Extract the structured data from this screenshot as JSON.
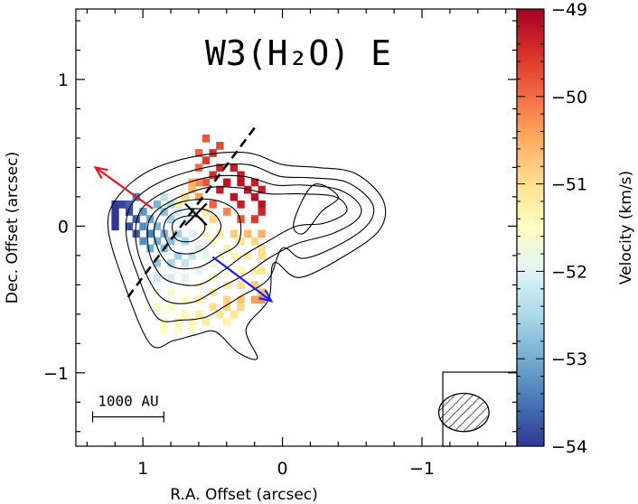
{
  "chart_data": {
    "type": "heatmap",
    "title": "W3(H₂O) E",
    "xlabel": "R.A. Offset (arcsec)",
    "ylabel": "Dec. Offset (arcsec)",
    "colorbar_label": "Velocity (km/s)",
    "xlim": [
      1.48,
      -1.68
    ],
    "ylim": [
      -1.5,
      1.48
    ],
    "x_ticks": [
      1,
      0,
      -1
    ],
    "x_tick_labels": [
      "1",
      "0",
      "−1"
    ],
    "y_ticks": [
      1,
      0,
      -1
    ],
    "y_tick_labels": [
      "1",
      "0",
      "−1"
    ],
    "colorbar_range": [
      -54,
      -49
    ],
    "colorbar_ticks": [
      -49,
      -50,
      -51,
      -52,
      -53,
      -54
    ],
    "colorbar_tick_labels": [
      "−49",
      "−50",
      "−51",
      "−52",
      "−53",
      "−54"
    ],
    "pixel_size_arcsec": 0.05,
    "velocity_pixels": [
      [
        0.55,
        0.6,
        -49.8
      ],
      [
        0.45,
        0.55,
        -49.7
      ],
      [
        0.6,
        0.5,
        -49.9
      ],
      [
        0.5,
        0.5,
        -49.5
      ],
      [
        0.55,
        0.45,
        -49.6
      ],
      [
        0.6,
        0.4,
        -50.0
      ],
      [
        0.45,
        0.4,
        -49.4
      ],
      [
        0.35,
        0.4,
        -49.3
      ],
      [
        0.3,
        0.35,
        -49.3
      ],
      [
        0.5,
        0.35,
        -49.5
      ],
      [
        0.4,
        0.3,
        -49.2
      ],
      [
        0.3,
        0.3,
        -49.2
      ],
      [
        0.2,
        0.3,
        -49.3
      ],
      [
        0.55,
        0.3,
        -49.8
      ],
      [
        0.6,
        0.3,
        -50.2
      ],
      [
        0.65,
        0.3,
        -50.5
      ],
      [
        0.25,
        0.25,
        -49.2
      ],
      [
        0.15,
        0.25,
        -49.3
      ],
      [
        0.45,
        0.25,
        -49.3
      ],
      [
        0.65,
        0.25,
        -50.6
      ],
      [
        0.2,
        0.2,
        -49.2
      ],
      [
        0.35,
        0.2,
        -49.2
      ],
      [
        0.6,
        0.2,
        -50.4
      ],
      [
        0.15,
        0.15,
        -49.2
      ],
      [
        0.3,
        0.15,
        -49.3
      ],
      [
        0.5,
        0.15,
        -49.9
      ],
      [
        0.7,
        0.2,
        -50.9
      ],
      [
        0.75,
        0.15,
        -51.2
      ],
      [
        1.2,
        0.15,
        -54.0
      ],
      [
        1.15,
        0.15,
        -53.9
      ],
      [
        1.05,
        0.2,
        -53.4
      ],
      [
        1.1,
        0.15,
        -53.7
      ],
      [
        1.2,
        0.1,
        -54.0
      ],
      [
        1.1,
        0.1,
        -53.8
      ],
      [
        1.0,
        0.1,
        -53.2
      ],
      [
        0.9,
        0.15,
        -52.9
      ],
      [
        0.85,
        0.2,
        -52.3
      ],
      [
        1.2,
        0.05,
        -54.0
      ],
      [
        1.05,
        0.05,
        -53.7
      ],
      [
        0.95,
        0.05,
        -53.1
      ],
      [
        0.85,
        0.1,
        -52.8
      ],
      [
        0.8,
        0.15,
        -52.4
      ],
      [
        1.2,
        0.0,
        -54.0
      ],
      [
        1.1,
        0.0,
        -53.8
      ],
      [
        1.0,
        0.0,
        -53.3
      ],
      [
        0.9,
        0.0,
        -52.9
      ],
      [
        0.8,
        0.05,
        -52.6
      ],
      [
        0.75,
        0.1,
        -52.1
      ],
      [
        0.7,
        0.05,
        -52.0
      ],
      [
        0.65,
        0.1,
        -51.7
      ],
      [
        0.55,
        0.1,
        -51.2
      ],
      [
        0.5,
        0.05,
        -50.9
      ],
      [
        0.4,
        0.1,
        -50.2
      ],
      [
        0.3,
        0.05,
        -49.8
      ],
      [
        0.2,
        0.05,
        -49.6
      ],
      [
        0.15,
        0.1,
        -49.4
      ],
      [
        1.05,
        -0.05,
        -53.7
      ],
      [
        0.95,
        -0.05,
        -53.4
      ],
      [
        0.85,
        -0.05,
        -53.0
      ],
      [
        0.75,
        -0.05,
        -52.6
      ],
      [
        0.65,
        -0.05,
        -52.0
      ],
      [
        0.55,
        -0.05,
        -51.6
      ],
      [
        0.45,
        -0.05,
        -51.2
      ],
      [
        0.35,
        -0.05,
        -50.8
      ],
      [
        0.25,
        -0.05,
        -50.6
      ],
      [
        0.15,
        -0.05,
        -50.5
      ],
      [
        1.0,
        -0.1,
        -53.3
      ],
      [
        0.9,
        -0.1,
        -53.0
      ],
      [
        0.8,
        -0.1,
        -52.8
      ],
      [
        0.7,
        -0.1,
        -52.5
      ],
      [
        0.6,
        -0.15,
        -52.1
      ],
      [
        0.5,
        -0.1,
        -51.6
      ],
      [
        0.4,
        -0.15,
        -51.3
      ],
      [
        0.3,
        -0.1,
        -51.1
      ],
      [
        0.2,
        -0.1,
        -50.9
      ],
      [
        0.15,
        -0.15,
        -51.0
      ],
      [
        0.95,
        -0.15,
        -53.0
      ],
      [
        0.85,
        -0.15,
        -52.8
      ],
      [
        0.75,
        -0.2,
        -52.6
      ],
      [
        0.65,
        -0.2,
        -52.3
      ],
      [
        0.55,
        -0.2,
        -51.9
      ],
      [
        0.45,
        -0.2,
        -51.6
      ],
      [
        0.35,
        -0.2,
        -51.4
      ],
      [
        0.25,
        -0.2,
        -51.2
      ],
      [
        0.15,
        -0.2,
        -51.0
      ],
      [
        0.9,
        -0.25,
        -52.7
      ],
      [
        0.8,
        -0.25,
        -52.5
      ],
      [
        0.7,
        -0.25,
        -52.3
      ],
      [
        0.6,
        -0.3,
        -52.0
      ],
      [
        0.5,
        -0.25,
        -51.8
      ],
      [
        0.4,
        -0.3,
        -51.6
      ],
      [
        0.3,
        -0.3,
        -51.4
      ],
      [
        0.2,
        -0.3,
        -51.2
      ],
      [
        0.15,
        -0.3,
        -51.1
      ],
      [
        0.9,
        -0.35,
        -52.2
      ],
      [
        0.8,
        -0.35,
        -52.1
      ],
      [
        0.7,
        -0.35,
        -51.9
      ],
      [
        0.6,
        -0.4,
        -51.6
      ],
      [
        0.5,
        -0.35,
        -51.4
      ],
      [
        0.4,
        -0.4,
        -51.2
      ],
      [
        0.3,
        -0.4,
        -51.0
      ],
      [
        0.2,
        -0.4,
        -50.8
      ],
      [
        0.15,
        -0.45,
        -50.7
      ],
      [
        0.9,
        -0.45,
        -51.8
      ],
      [
        0.8,
        -0.45,
        -51.6
      ],
      [
        0.7,
        -0.5,
        -51.5
      ],
      [
        0.6,
        -0.5,
        -51.3
      ],
      [
        0.5,
        -0.45,
        -51.1
      ],
      [
        0.4,
        -0.5,
        -50.9
      ],
      [
        0.3,
        -0.5,
        -50.7
      ],
      [
        0.2,
        -0.5,
        -50.4
      ],
      [
        0.15,
        -0.5,
        -50.3
      ],
      [
        0.9,
        -0.55,
        -51.6
      ],
      [
        0.8,
        -0.55,
        -51.5
      ],
      [
        0.7,
        -0.6,
        -51.4
      ],
      [
        0.6,
        -0.6,
        -51.2
      ],
      [
        0.5,
        -0.55,
        -51.0
      ],
      [
        0.4,
        -0.55,
        -50.9
      ],
      [
        0.3,
        -0.55,
        -50.9
      ],
      [
        0.85,
        -0.65,
        -51.5
      ],
      [
        0.75,
        -0.65,
        -51.4
      ],
      [
        0.65,
        -0.65,
        -51.3
      ],
      [
        0.55,
        -0.65,
        -51.2
      ],
      [
        0.45,
        -0.6,
        -51.1
      ],
      [
        0.4,
        -0.65,
        -51.3
      ],
      [
        0.35,
        -0.6,
        -51.1
      ],
      [
        0.85,
        -0.7,
        -51.5
      ],
      [
        0.75,
        -0.7,
        -51.6
      ],
      [
        0.65,
        -0.7,
        -51.6
      ]
    ],
    "contours": [
      [
        [
          0.95,
          -0.8
        ],
        [
          0.78,
          -0.78
        ],
        [
          0.62,
          -0.74
        ],
        [
          0.48,
          -0.72
        ],
        [
          0.32,
          -0.86
        ],
        [
          0.18,
          -0.9
        ],
        [
          0.26,
          -0.7
        ],
        [
          0.1,
          -0.5
        ],
        [
          0.06,
          -0.25
        ],
        [
          -0.12,
          -0.35
        ],
        [
          -0.45,
          -0.2
        ],
        [
          -0.7,
          -0.02
        ],
        [
          -0.72,
          0.18
        ],
        [
          -0.52,
          0.36
        ],
        [
          -0.25,
          0.4
        ],
        [
          0.0,
          0.42
        ],
        [
          0.25,
          0.5
        ],
        [
          0.6,
          0.48
        ],
        [
          0.95,
          0.38
        ],
        [
          1.18,
          0.2
        ],
        [
          1.25,
          0.0
        ],
        [
          1.15,
          -0.35
        ]
      ],
      [
        [
          0.9,
          -0.62
        ],
        [
          0.72,
          -0.64
        ],
        [
          0.55,
          -0.62
        ],
        [
          0.42,
          -0.55
        ],
        [
          0.3,
          -0.48
        ],
        [
          0.1,
          -0.36
        ],
        [
          0.0,
          -0.15
        ],
        [
          -0.15,
          -0.22
        ],
        [
          -0.42,
          -0.12
        ],
        [
          -0.62,
          0.02
        ],
        [
          -0.64,
          0.16
        ],
        [
          -0.46,
          0.3
        ],
        [
          -0.2,
          0.33
        ],
        [
          0.02,
          0.34
        ],
        [
          0.25,
          0.42
        ],
        [
          0.55,
          0.4
        ],
        [
          0.88,
          0.3
        ],
        [
          1.08,
          0.15
        ],
        [
          1.12,
          -0.05
        ],
        [
          1.05,
          -0.3
        ]
      ],
      [
        [
          0.85,
          -0.5
        ],
        [
          0.65,
          -0.52
        ],
        [
          0.45,
          -0.42
        ],
        [
          0.25,
          -0.32
        ],
        [
          0.1,
          -0.22
        ],
        [
          -0.1,
          -0.12
        ],
        [
          -0.36,
          -0.05
        ],
        [
          -0.54,
          0.05
        ],
        [
          -0.55,
          0.15
        ],
        [
          -0.4,
          0.25
        ],
        [
          -0.15,
          0.28
        ],
        [
          0.05,
          0.28
        ],
        [
          0.28,
          0.34
        ],
        [
          0.55,
          0.33
        ],
        [
          0.85,
          0.23
        ],
        [
          1.02,
          0.1
        ],
        [
          1.05,
          -0.1
        ],
        [
          0.98,
          -0.32
        ]
      ],
      [
        [
          0.8,
          -0.38
        ],
        [
          0.6,
          -0.4
        ],
        [
          0.42,
          -0.3
        ],
        [
          0.28,
          -0.2
        ],
        [
          0.1,
          -0.1
        ],
        [
          -0.1,
          0.0
        ],
        [
          -0.3,
          0.02
        ],
        [
          -0.46,
          0.1
        ],
        [
          -0.38,
          0.2
        ],
        [
          -0.12,
          0.22
        ],
        [
          0.1,
          0.22
        ],
        [
          0.3,
          0.26
        ],
        [
          0.55,
          0.26
        ],
        [
          0.8,
          0.17
        ],
        [
          0.95,
          0.05
        ],
        [
          0.96,
          -0.15
        ],
        [
          0.9,
          -0.3
        ]
      ],
      [
        [
          0.78,
          -0.28
        ],
        [
          0.6,
          -0.28
        ],
        [
          0.45,
          -0.2
        ],
        [
          0.32,
          -0.12
        ],
        [
          0.3,
          0.02
        ],
        [
          0.35,
          0.12
        ],
        [
          0.5,
          0.18
        ],
        [
          0.7,
          0.17
        ],
        [
          0.86,
          0.1
        ],
        [
          0.92,
          -0.03
        ],
        [
          0.88,
          -0.18
        ]
      ],
      [
        [
          0.76,
          -0.18
        ],
        [
          0.62,
          -0.18
        ],
        [
          0.5,
          -0.1
        ],
        [
          0.44,
          0.0
        ],
        [
          0.5,
          0.09
        ],
        [
          0.63,
          0.12
        ],
        [
          0.78,
          0.09
        ],
        [
          0.85,
          0.0
        ],
        [
          0.82,
          -0.12
        ]
      ],
      [
        [
          0.74,
          -0.1
        ],
        [
          0.64,
          -0.1
        ],
        [
          0.56,
          -0.03
        ],
        [
          0.58,
          0.05
        ],
        [
          0.68,
          0.07
        ],
        [
          0.78,
          0.03
        ],
        [
          0.78,
          -0.06
        ]
      ],
      [
        [
          -0.22,
          0.28
        ],
        [
          -0.08,
          0.02
        ],
        [
          -0.15,
          -0.05
        ],
        [
          -0.28,
          0.1
        ],
        [
          -0.4,
          0.2
        ]
      ]
    ],
    "outflow_axis": [
      [
        0.2,
        0.67
      ],
      [
        1.12,
        -0.5
      ]
    ],
    "red_arrow": [
      [
        0.93,
        0.12
      ],
      [
        1.34,
        0.4
      ]
    ],
    "blue_arrow": [
      [
        0.5,
        -0.21
      ],
      [
        0.08,
        -0.51
      ]
    ],
    "center_marker": [
      0.62,
      0.08
    ],
    "scale_bar": {
      "label": "1000 AU",
      "x_from": 1.36,
      "x_to": 0.85,
      "y": -1.3
    },
    "beam": {
      "center": [
        -1.3,
        -1.27
      ],
      "major": 0.18,
      "minor": 0.13,
      "angle": 0
    },
    "colors": {
      "colormap": [
        "#313695",
        "#4575b4",
        "#74add1",
        "#abd9e9",
        "#e0f3f8",
        "#ffffbf",
        "#fee090",
        "#fdae61",
        "#f46d43",
        "#d73027",
        "#a50026"
      ],
      "red_arrow": "#e41a1c",
      "blue_arrow": "#1a1aff"
    }
  }
}
